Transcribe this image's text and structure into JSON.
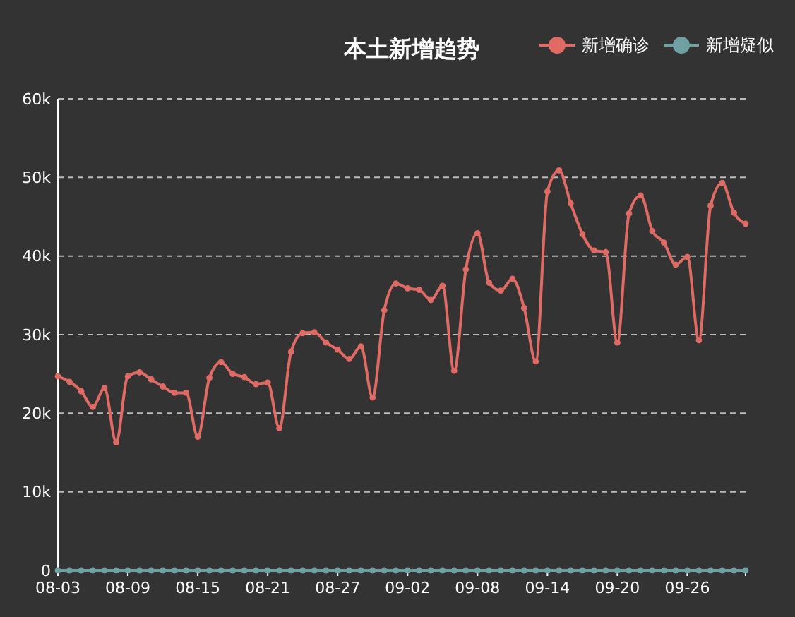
{
  "chart_data": {
    "type": "line",
    "title": "本土新增趋势",
    "categories": [
      "08-03",
      null,
      null,
      null,
      null,
      null,
      "08-09",
      null,
      null,
      null,
      null,
      null,
      "08-15",
      null,
      null,
      null,
      null,
      null,
      "08-21",
      null,
      null,
      null,
      null,
      null,
      "08-27",
      null,
      null,
      null,
      null,
      null,
      "09-02",
      null,
      null,
      null,
      null,
      null,
      "09-08",
      null,
      null,
      null,
      null,
      null,
      "09-14",
      null,
      null,
      null,
      null,
      null,
      "09-20",
      null,
      null,
      null,
      null,
      null,
      "09-26",
      null,
      null,
      null,
      null,
      null
    ],
    "series": [
      {
        "name": "新增确诊",
        "color": "#e06a64",
        "values": [
          24700,
          24000,
          22800,
          20800,
          23200,
          16300,
          24700,
          25200,
          24300,
          23400,
          22600,
          22600,
          17000,
          24500,
          26500,
          25000,
          24600,
          23700,
          23900,
          18100,
          27800,
          30200,
          30300,
          29000,
          28100,
          26900,
          28500,
          22000,
          33100,
          36500,
          35900,
          35700,
          34400,
          36200,
          25400,
          38300,
          42900,
          36600,
          35600,
          37100,
          33400,
          26600,
          48200,
          50900,
          46700,
          42800,
          40700,
          40500,
          29000,
          45400,
          47700,
          43200,
          41700,
          38900,
          39900,
          29300,
          46400,
          49300,
          45500,
          44100
        ]
      },
      {
        "name": "新增疑似",
        "color": "#6fa0a2",
        "values": [
          0,
          0,
          0,
          0,
          0,
          0,
          0,
          0,
          0,
          0,
          0,
          0,
          0,
          0,
          0,
          0,
          0,
          0,
          0,
          0,
          0,
          0,
          0,
          0,
          0,
          0,
          0,
          0,
          0,
          0,
          0,
          0,
          0,
          0,
          0,
          0,
          0,
          0,
          0,
          0,
          0,
          0,
          0,
          0,
          0,
          0,
          0,
          0,
          0,
          0,
          0,
          0,
          0,
          0,
          0,
          0,
          0,
          0,
          0,
          0
        ]
      }
    ],
    "ylim": [
      0,
      60000
    ],
    "yticks": [
      {
        "value": 0,
        "label": "0"
      },
      {
        "value": 10000,
        "label": "10k"
      },
      {
        "value": 20000,
        "label": "20k"
      },
      {
        "value": 30000,
        "label": "30k"
      },
      {
        "value": 40000,
        "label": "40k"
      },
      {
        "value": 50000,
        "label": "50k"
      },
      {
        "value": 60000,
        "label": "60k"
      }
    ],
    "grid": "y",
    "legend": "top right",
    "marker": "circle",
    "line_style": "solid"
  }
}
